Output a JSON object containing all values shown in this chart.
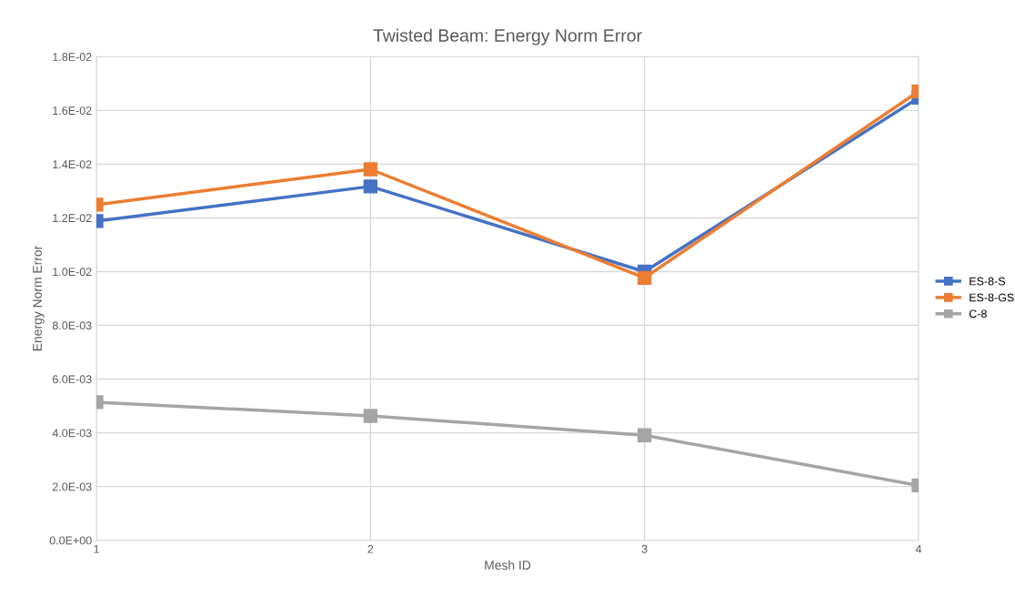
{
  "chart_data": {
    "type": "line",
    "title": "Twisted Beam: Energy Norm Error",
    "xlabel": "Mesh ID",
    "ylabel": "Energy Norm Error",
    "x": [
      1,
      2,
      3,
      4
    ],
    "series": [
      {
        "name": "ES-8-S",
        "color": "#4472c4",
        "values": [
          0.01188,
          0.01317,
          0.01,
          0.01647
        ]
      },
      {
        "name": "ES-8-GS",
        "color": "#ed7d31",
        "values": [
          0.01249,
          0.01381,
          0.00977,
          0.01671
        ]
      },
      {
        "name": "C-8",
        "color": "#a5a5a5",
        "values": [
          0.00514,
          0.00463,
          0.00391,
          0.00204
        ]
      }
    ],
    "xlim": [
      1,
      4
    ],
    "xticks": [
      1,
      2,
      3,
      4
    ],
    "ylim": [
      0,
      0.018
    ],
    "yticks": [
      {
        "value": 0,
        "label": "0.0E+00"
      },
      {
        "value": 0.002,
        "label": "2.0E-03"
      },
      {
        "value": 0.004,
        "label": "4.0E-03"
      },
      {
        "value": 0.006,
        "label": "6.0E-03"
      },
      {
        "value": 0.008,
        "label": "8.0E-03"
      },
      {
        "value": 0.01,
        "label": "1.0E-02"
      },
      {
        "value": 0.012,
        "label": "1.2E-02"
      },
      {
        "value": 0.014,
        "label": "1.4E-02"
      },
      {
        "value": 0.016,
        "label": "1.6E-02"
      },
      {
        "value": 0.018,
        "label": "1.8E-02"
      }
    ],
    "grid": true,
    "legend": "right",
    "marker": "square",
    "line_style": "solid"
  }
}
